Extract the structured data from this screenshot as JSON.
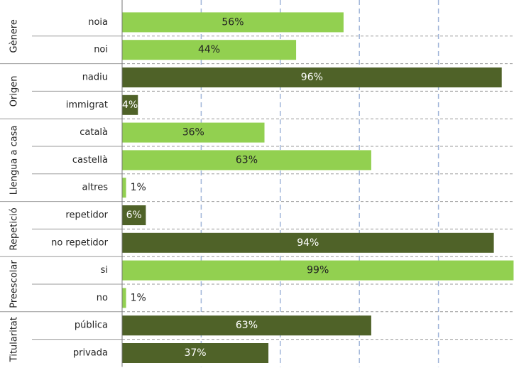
{
  "chart_data": {
    "type": "bar",
    "orientation": "horizontal",
    "xlim": [
      0,
      100
    ],
    "xticks": [
      20,
      40,
      60,
      80
    ],
    "grid": true,
    "groups": [
      {
        "name": "Gènere",
        "color": "#92d050",
        "categories": [
          "noia",
          "noi"
        ],
        "values": [
          56,
          44
        ],
        "value_labels": [
          "56%",
          "44%"
        ]
      },
      {
        "name": "Origen",
        "color": "#4f6228",
        "categories": [
          "nadiu",
          "immigrat"
        ],
        "values": [
          96,
          4
        ],
        "value_labels": [
          "96%",
          "4%"
        ]
      },
      {
        "name": "Llengua a casa",
        "color": "#92d050",
        "categories": [
          "català",
          "castellà",
          "altres"
        ],
        "values": [
          36,
          63,
          1
        ],
        "value_labels": [
          "36%",
          "63%",
          "1%"
        ]
      },
      {
        "name": "Repetició",
        "color": "#4f6228",
        "categories": [
          "repetidor",
          "no repetidor"
        ],
        "values": [
          6,
          94
        ],
        "value_labels": [
          "6%",
          "94%"
        ]
      },
      {
        "name": "Preescolar",
        "color": "#92d050",
        "categories": [
          "si",
          "no"
        ],
        "values": [
          99,
          1
        ],
        "value_labels": [
          "99%",
          "1%"
        ]
      },
      {
        "name": "Titularitat",
        "color": "#4f6228",
        "categories": [
          "pública",
          "privada"
        ],
        "values": [
          63,
          37
        ],
        "value_labels": [
          "63%",
          "37%"
        ]
      }
    ]
  }
}
